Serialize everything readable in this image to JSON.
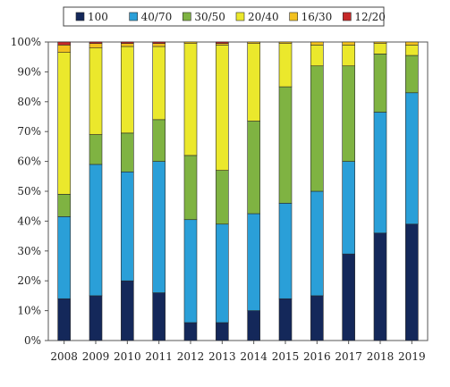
{
  "chart_data": {
    "type": "bar",
    "stacked": true,
    "title": "",
    "xlabel": "",
    "ylabel": "",
    "ylim": [
      0,
      100
    ],
    "y_ticks": [
      "0%",
      "10%",
      "20%",
      "30%",
      "40%",
      "50%",
      "60%",
      "70%",
      "80%",
      "90%",
      "100%"
    ],
    "grid": false,
    "legend_position": "top",
    "categories": [
      "2008",
      "2009",
      "2010",
      "2011",
      "2012",
      "2013",
      "2014",
      "2015",
      "2016",
      "2017",
      "2018",
      "2019"
    ],
    "series": [
      {
        "name": "100",
        "color": "#14285a",
        "values": [
          14,
          15,
          20,
          16,
          6,
          6,
          10,
          14,
          15,
          29,
          36,
          39
        ]
      },
      {
        "name": "40/70",
        "color": "#2a9fd8",
        "values": [
          27.5,
          44,
          36.5,
          44,
          34.5,
          33,
          32.5,
          32,
          35,
          31,
          40.5,
          44
        ]
      },
      {
        "name": "30/50",
        "color": "#7fb342",
        "values": [
          7.5,
          10,
          13,
          14,
          21.5,
          18,
          31,
          39,
          42,
          32,
          19.5,
          12.5
        ]
      },
      {
        "name": "20/40",
        "color": "#ebe82c",
        "values": [
          47.5,
          29,
          29,
          24.5,
          37.5,
          42,
          26,
          14.5,
          7,
          7,
          3.5,
          3.5
        ]
      },
      {
        "name": "16/30",
        "color": "#f3c11e",
        "values": [
          2.5,
          1.5,
          1,
          1,
          0.5,
          0.5,
          0.5,
          0.5,
          1,
          1,
          0.5,
          1
        ]
      },
      {
        "name": "12/20",
        "color": "#c62828",
        "values": [
          1,
          0.5,
          0.5,
          0.5,
          0,
          0.5,
          0,
          0,
          0,
          0,
          0,
          0
        ]
      }
    ]
  }
}
